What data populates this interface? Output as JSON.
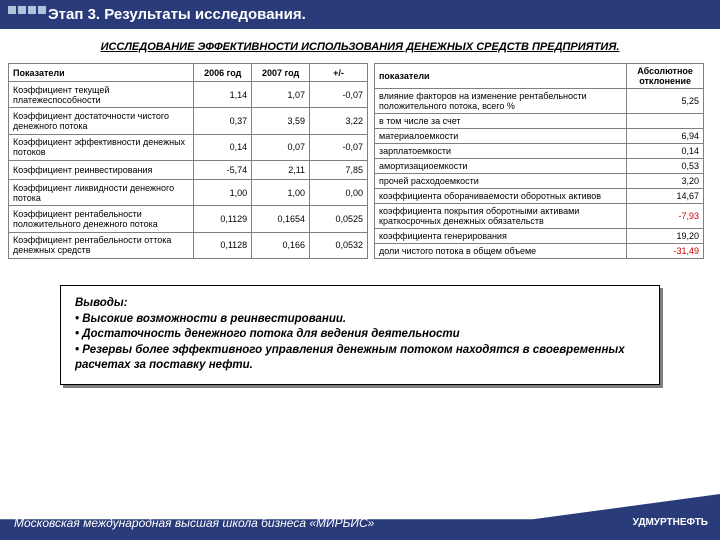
{
  "header": {
    "title": "Этап 3. Результаты исследования."
  },
  "subtitle": "ИССЛЕДОВАНИЕ ЭФФЕКТИВНОСТИ ИСПОЛЬЗОВАНИЯ ДЕНЕЖНЫХ СРЕДСТВ ПРЕДПРИЯТИЯ.",
  "table1": {
    "headers": [
      "Показатели",
      "2006 год",
      "2007 год",
      "+/-"
    ],
    "rows": [
      [
        "Коэффициент текущей платежеспособности",
        "1,14",
        "1,07",
        "-0,07"
      ],
      [
        "Коэффициент достаточности чистого денежного потока",
        "0,37",
        "3,59",
        "3,22"
      ],
      [
        "Коэффициент эффективности денежных потоков",
        "0,14",
        "0,07",
        "-0,07"
      ],
      [
        "Коэффициент реинвестирования",
        "-5,74",
        "2,11",
        "7,85"
      ],
      [
        "Коэффициент ликвидности денежного потока",
        "1,00",
        "1,00",
        "0,00"
      ],
      [
        "Коэффициент рентабельности положительного денежного потока",
        "0,1129",
        "0,1654",
        "0,0525"
      ],
      [
        "Коэффициент рентабельности оттока денежных средств",
        "0,1128",
        "0,166",
        "0,0532"
      ]
    ]
  },
  "table2": {
    "headers": [
      "показатели",
      "Абсолютное отклонение"
    ],
    "rows": [
      {
        "label": "влияние факторов на изменение рентабельности положительного потока, всего %",
        "val": "5,25",
        "red": false
      },
      {
        "label": "в том числе за счет",
        "val": "",
        "red": false
      },
      {
        "label": "материалоемкости",
        "val": "6,94",
        "red": false
      },
      {
        "label": "зарплатоемкости",
        "val": "0,14",
        "red": false
      },
      {
        "label": "амортизациоемкости",
        "val": "0,53",
        "red": false
      },
      {
        "label": "прочей расходоемкости",
        "val": "3,20",
        "red": false
      },
      {
        "label": "коэффициента оборачиваемости оборотных активов",
        "val": "14,67",
        "red": false
      },
      {
        "label": "коэффициента покрытия оборотными активами краткосрочных денежных обязательств",
        "val": "-7,93",
        "red": true
      },
      {
        "label": "коэффициента генерирования",
        "val": "19,20",
        "red": false
      },
      {
        "label": "доли чистого потока в общем объеме",
        "val": "-31,49",
        "red": true
      }
    ]
  },
  "conclusions": {
    "title": "Выводы:",
    "items": [
      "Высокие возможности в реинвестировании.",
      "Достаточность денежного потока для ведения деятельности",
      "Резервы  более эффективного управления денежным потоком находятся в своевременных расчетах за поставку нефти."
    ]
  },
  "footer": {
    "left": "Московская международная высшая школа бизнеса «МИРБИС»",
    "right": "УДМУРТНЕФТЬ"
  }
}
